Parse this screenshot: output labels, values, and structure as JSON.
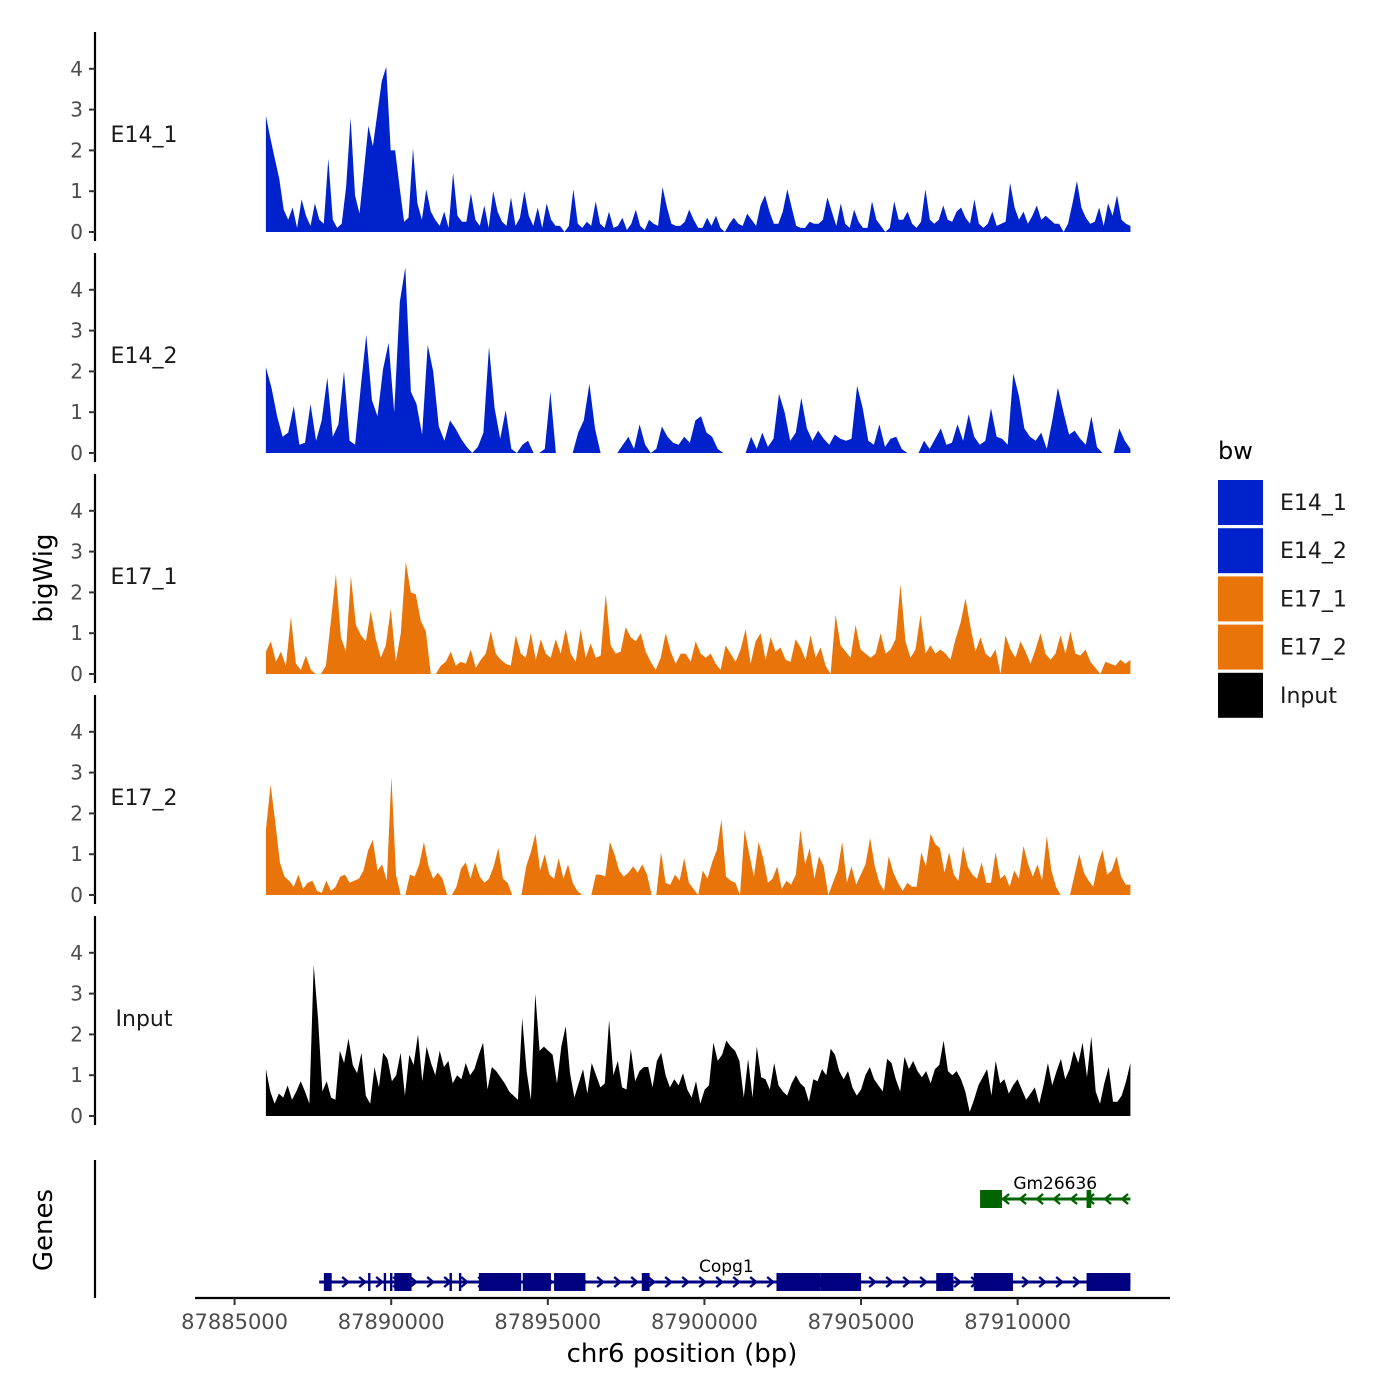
{
  "chart_data": {
    "type": "area",
    "ylabel": "bigWig",
    "genes_label": "Genes",
    "xlabel": "chr6 position (bp)",
    "xlim": [
      87883800,
      87914800
    ],
    "xticks": [
      87885000,
      87890000,
      87895000,
      87900000,
      87905000,
      87910000
    ],
    "xtick_labels": [
      "87885000",
      "87890000",
      "87895000",
      "87900000",
      "87905000",
      "87910000"
    ],
    "ylim": [
      0,
      4.8
    ],
    "yticks": [
      0,
      1,
      2,
      3,
      4
    ],
    "ytick_labels": [
      "0",
      "1",
      "2",
      "3",
      "4"
    ],
    "legend": {
      "title": "bw",
      "placement": "right",
      "entries": [
        {
          "label": "E14_1",
          "color": "#0022CC"
        },
        {
          "label": "E14_2",
          "color": "#0022CC"
        },
        {
          "label": "E17_1",
          "color": "#E8740A"
        },
        {
          "label": "E17_2",
          "color": "#E8740A"
        },
        {
          "label": "Input",
          "color": "#000000"
        }
      ]
    },
    "x_range": [
      87886000,
      87913600
    ],
    "series": [
      {
        "name": "E14_1",
        "color": "#0022CC",
        "values": [
          2.85,
          2.3,
          1.8,
          1.3,
          0.55,
          0.3,
          0.6,
          0.1,
          0.8,
          0.4,
          0.15,
          0.7,
          0.3,
          0.2,
          1.8,
          0.3,
          0.1,
          0.2,
          1.1,
          2.8,
          0.9,
          0.45,
          1.5,
          2.6,
          2.1,
          2.9,
          3.7,
          4.05,
          2.0,
          2.0,
          1.1,
          0.25,
          0.35,
          2.05,
          0.7,
          0.3,
          1.05,
          0.5,
          0.3,
          0.15,
          0.5,
          0.1,
          1.45,
          0.4,
          0.25,
          0.25,
          0.95,
          0.3,
          0.15,
          0.65,
          0.1,
          1.0,
          0.5,
          0.25,
          0.15,
          0.85,
          0.15,
          0.35,
          1.0,
          0.4,
          0.15,
          0.6,
          0.1,
          0.7,
          0.3,
          0.15,
          0.15,
          0,
          0.15,
          1.05,
          0.2,
          0.1,
          0.25,
          0.15,
          0.75,
          0.2,
          0.1,
          0.5,
          0.1,
          0.15,
          0.35,
          0.05,
          0.2,
          0.55,
          0.15,
          0.05,
          0.3,
          0.2,
          0.15,
          1.1,
          0.6,
          0.2,
          0.15,
          0.15,
          0.25,
          0.55,
          0.3,
          0.1,
          0.1,
          0.35,
          0.15,
          0.4,
          0.1,
          0,
          0.2,
          0.35,
          0.2,
          0.15,
          0.45,
          0.3,
          0.15,
          0.65,
          0.9,
          0.5,
          0.2,
          0.2,
          0.5,
          1.05,
          0.6,
          0.15,
          0.1,
          0.1,
          0.25,
          0.2,
          0.2,
          0.3,
          0.85,
          0.5,
          0.15,
          0.7,
          0.2,
          0.1,
          0.55,
          0.25,
          0.1,
          0.1,
          0.75,
          0.3,
          0.15,
          0,
          0.1,
          0.75,
          0.3,
          0.3,
          0.5,
          0.2,
          0.1,
          0.25,
          1.05,
          0.3,
          0.2,
          0.3,
          0.65,
          0.3,
          0.25,
          0.5,
          0.6,
          0.35,
          0.2,
          0.8,
          0.2,
          0.1,
          0.2,
          0.5,
          0.15,
          0.2,
          0.25,
          1.2,
          0.6,
          0.3,
          0.5,
          0.2,
          0.4,
          0.65,
          0.3,
          0.4,
          0.3,
          0.2,
          0.2,
          0,
          0.2,
          0.7,
          1.25,
          0.6,
          0.35,
          0.2,
          0.25,
          0.6,
          0.15,
          0.7,
          0.4,
          0.9,
          0.3,
          0.2,
          0.15
        ]
      },
      {
        "name": "E14_2",
        "color": "#0022CC",
        "values": [
          2.1,
          1.6,
          0.9,
          0.4,
          0.5,
          1.15,
          0.2,
          0.25,
          1.2,
          0.3,
          0.8,
          1.85,
          0.4,
          0.7,
          2.0,
          0.3,
          0.2,
          1.6,
          2.9,
          1.3,
          0.9,
          2.05,
          2.7,
          1.0,
          3.7,
          4.55,
          1.5,
          1.2,
          0.45,
          2.65,
          2.0,
          0.65,
          0.3,
          0.8,
          0.6,
          0.35,
          0.15,
          0,
          0.15,
          0.5,
          2.6,
          1.1,
          0.35,
          1.05,
          0.1,
          0,
          0.2,
          0.3,
          0,
          0,
          0.1,
          1.5,
          0,
          0,
          0,
          0,
          0.5,
          0.8,
          1.7,
          0.6,
          0,
          0,
          0,
          0,
          0.2,
          0.4,
          0.1,
          0.7,
          0.2,
          0,
          0.1,
          0.65,
          0.4,
          0.25,
          0.2,
          0.4,
          0.25,
          0.8,
          0.9,
          0.5,
          0.4,
          0.1,
          0,
          0,
          0,
          0,
          0,
          0.4,
          0.1,
          0.5,
          0.15,
          0.35,
          1.45,
          1.0,
          0.3,
          0.5,
          1.35,
          0.6,
          0.3,
          0.55,
          0.35,
          0.2,
          0.45,
          0.35,
          0.3,
          0.35,
          1.65,
          1.1,
          0.3,
          0.2,
          0.7,
          0.15,
          0.35,
          0.4,
          0.1,
          0,
          0,
          0,
          0.3,
          0.1,
          0.35,
          0.6,
          0.2,
          0.25,
          0.7,
          0.3,
          0.95,
          0.4,
          0.2,
          0.3,
          1.1,
          0.4,
          0.35,
          0.2,
          1.95,
          1.4,
          0.6,
          0.4,
          0.3,
          0.5,
          0.1,
          0.8,
          1.6,
          1.0,
          0.45,
          0.55,
          0.35,
          0.2,
          0.9,
          0.15,
          0,
          0,
          0,
          0.6,
          0.3,
          0.1
        ]
      },
      {
        "name": "E17_1",
        "color": "#E8740A",
        "values": [
          0.55,
          0.8,
          0.3,
          0.55,
          0.2,
          1.4,
          0.25,
          0.1,
          0.45,
          0.1,
          0,
          0,
          0.2,
          1.3,
          2.45,
          0.9,
          0.55,
          2.4,
          1.2,
          0.95,
          0.8,
          1.55,
          0.85,
          0.4,
          0.7,
          1.6,
          0.3,
          1.0,
          2.75,
          2.0,
          1.95,
          1.3,
          1.05,
          0,
          0,
          0.2,
          0.3,
          0.55,
          0.2,
          0.3,
          0.25,
          0.6,
          0.15,
          0.35,
          0.5,
          1.05,
          0.5,
          0.35,
          0.25,
          0.2,
          0.95,
          0.5,
          0.4,
          1.0,
          0.35,
          0.85,
          0.5,
          0.4,
          0.85,
          0.5,
          1.1,
          0.5,
          0.3,
          1.1,
          0.4,
          0.75,
          0.4,
          0.45,
          1.95,
          0.7,
          0.5,
          0.55,
          1.15,
          0.9,
          0.8,
          1.0,
          0.55,
          0.3,
          0.1,
          0.4,
          1.0,
          0.55,
          0.25,
          0.5,
          0.5,
          0.3,
          0.8,
          0.5,
          0.4,
          0.5,
          0.25,
          0.1,
          0.7,
          0.5,
          0.3,
          0.6,
          1.1,
          0.25,
          0.8,
          1.0,
          0.35,
          0.9,
          0.55,
          0.65,
          0.35,
          0.3,
          0.85,
          0.65,
          0.35,
          0.95,
          0.4,
          0.65,
          0.2,
          0,
          1.45,
          0.7,
          0.55,
          0.4,
          1.2,
          0.6,
          0.5,
          0.4,
          0.5,
          1.0,
          0.5,
          0.6,
          0.85,
          2.2,
          0.8,
          0.4,
          0.6,
          1.45,
          0.5,
          0.7,
          0.5,
          0.6,
          0.5,
          0.35,
          0.85,
          1.25,
          1.85,
          1.15,
          0.55,
          0.9,
          0.5,
          0.4,
          0.6,
          0,
          0.95,
          0.6,
          0.4,
          0.8,
          0.55,
          0.25,
          0.6,
          1.0,
          0.5,
          0.35,
          0.5,
          0.95,
          0.5,
          1.05,
          0.5,
          0.45,
          0.6,
          0.3,
          0.15,
          0,
          0.3,
          0.25,
          0.2,
          0.35,
          0.25,
          0.35
        ]
      },
      {
        "name": "E17_2",
        "color": "#E8740A",
        "values": [
          1.6,
          2.7,
          1.8,
          0.8,
          0.45,
          0.35,
          0.2,
          0.5,
          0.15,
          0.3,
          0.35,
          0.1,
          0.05,
          0.35,
          0.1,
          0.2,
          0.45,
          0.5,
          0.3,
          0.35,
          0.4,
          0.6,
          1.1,
          1.35,
          0.6,
          0.75,
          0.35,
          2.9,
          0.5,
          0,
          0,
          0.5,
          0.45,
          0.75,
          1.3,
          0.7,
          0.4,
          0.55,
          0.4,
          0,
          0,
          0.2,
          0.65,
          0.8,
          0.4,
          0.8,
          0.45,
          0.3,
          0.4,
          0.7,
          1.15,
          0.4,
          0.3,
          0,
          0,
          0,
          0.7,
          1.05,
          1.5,
          0.6,
          1.0,
          0.5,
          0.4,
          0.9,
          0.4,
          0.75,
          0.3,
          0.1,
          0,
          0,
          0,
          0.5,
          0.5,
          0.45,
          1.3,
          1.0,
          0.6,
          0.45,
          0.55,
          0.7,
          0.55,
          0.75,
          0.5,
          0,
          0,
          1.05,
          0.3,
          0.25,
          0.5,
          0.35,
          0.9,
          0.3,
          0.15,
          0,
          0.6,
          0.4,
          0.8,
          1.1,
          1.85,
          0.45,
          0.35,
          0.3,
          0,
          1.6,
          1.0,
          0.45,
          1.3,
          0.9,
          0.3,
          0.4,
          0.7,
          0.15,
          0.35,
          0.25,
          0.5,
          1.6,
          0.75,
          1.15,
          0.4,
          0.95,
          0.7,
          0,
          0.3,
          0.6,
          1.3,
          0.3,
          0.7,
          0.25,
          0.5,
          0.75,
          1.4,
          0.7,
          0.3,
          0.1,
          0.95,
          0.55,
          0.3,
          0.1,
          0.3,
          0.2,
          0.2,
          1.05,
          0.7,
          1.5,
          1.25,
          1.15,
          0.55,
          1.05,
          0.5,
          0.35,
          1.2,
          0.7,
          0.5,
          0.4,
          0.8,
          0.3,
          0.3,
          1.05,
          0.4,
          0.5,
          0.2,
          0.6,
          0.4,
          1.2,
          0.75,
          0.45,
          0.75,
          0.35,
          1.45,
          0.6,
          0.2,
          0,
          0,
          0,
          0.5,
          1.0,
          0.55,
          0.35,
          0.2,
          0.75,
          1.1,
          0.5,
          0.6,
          0.95,
          0.45,
          0.25,
          0.25
        ]
      },
      {
        "name": "Input",
        "color": "#000000",
        "values": [
          1.15,
          0.6,
          0.3,
          0.55,
          0.45,
          0.75,
          0.4,
          0.6,
          0.85,
          0.6,
          0.3,
          3.7,
          2.4,
          0.6,
          0.85,
          0.45,
          0.4,
          1.6,
          1.3,
          1.9,
          1.25,
          1.05,
          1.55,
          0.5,
          0.3,
          1.2,
          0.7,
          1.55,
          1.4,
          0.85,
          1.0,
          1.55,
          0.5,
          1.5,
          1.25,
          2.0,
          0.85,
          1.7,
          1.3,
          1.0,
          1.6,
          1.2,
          1.35,
          0.8,
          1.0,
          0.9,
          1.3,
          1.0,
          1.15,
          1.5,
          1.8,
          0.65,
          1.2,
          1.1,
          0.95,
          0.8,
          0.6,
          0.5,
          0.4,
          2.4,
          1.1,
          0.4,
          3.0,
          1.6,
          1.7,
          1.6,
          1.5,
          0.8,
          1.7,
          2.2,
          1.05,
          0.45,
          0.8,
          1.15,
          0.55,
          1.3,
          1.0,
          0.7,
          0.8,
          2.35,
          1.0,
          1.35,
          0.7,
          0.65,
          1.65,
          0.85,
          1.1,
          1.2,
          1.2,
          0.7,
          1.35,
          1.55,
          1.0,
          0.7,
          0.9,
          0.75,
          1.05,
          0.65,
          0.45,
          0.85,
          0.3,
          0.65,
          0.75,
          1.8,
          1.35,
          1.5,
          1.85,
          1.7,
          1.6,
          1.35,
          0.45,
          1.4,
          0.45,
          1.7,
          0.95,
          0.9,
          0.65,
          1.3,
          0.75,
          0.6,
          0.5,
          0.8,
          1.0,
          0.8,
          0.7,
          0.35,
          0.9,
          0.85,
          1.15,
          1.0,
          1.65,
          1.5,
          1.1,
          0.9,
          1.1,
          0.7,
          0.5,
          0.65,
          1.0,
          1.2,
          0.9,
          0.75,
          0.6,
          1.4,
          1.3,
          0.9,
          0.6,
          1.45,
          1.15,
          1.35,
          1.1,
          0.95,
          1.1,
          0.8,
          1.15,
          1.25,
          1.85,
          1.1,
          1.0,
          1.1,
          0.9,
          0.6,
          0.1,
          0.4,
          0.75,
          0.95,
          1.15,
          0.5,
          1.35,
          0.8,
          0.9,
          0.55,
          0.75,
          0.9,
          0.65,
          0.4,
          0.55,
          0.7,
          0.3,
          0.75,
          1.3,
          0.75,
          1.1,
          1.4,
          0.9,
          1.15,
          1.6,
          1.3,
          1.8,
          0.95,
          1.95,
          0.6,
          0.3,
          0.8,
          1.2,
          0.35,
          0.35,
          0.5,
          0.85,
          1.3
        ]
      }
    ],
    "genes": [
      {
        "name": "Copg1",
        "strand": "+",
        "color": "#000080",
        "start": 87887700,
        "end": 87913600,
        "label_pos": 87900700,
        "exons": [
          [
            87887850,
            87888100
          ],
          [
            87890100,
            87890650
          ],
          [
            87892800,
            87894150
          ],
          [
            87894200,
            87895100
          ],
          [
            87895200,
            87896200
          ],
          [
            87898000,
            87898250
          ],
          [
            87902300,
            87903700
          ],
          [
            87903700,
            87905000
          ],
          [
            87907400,
            87907950
          ],
          [
            87908600,
            87909850
          ],
          [
            87912200,
            87913600
          ]
        ],
        "marks": [
          87889300,
          87889800,
          87890000,
          87891900,
          87892200
        ]
      },
      {
        "name": "Gm26636",
        "strand": "-",
        "color": "#006400",
        "start": 87908800,
        "end": 87913600,
        "label_pos": 87911200,
        "exons": [
          [
            87908800,
            87909500
          ],
          [
            87912200,
            87912350
          ]
        ],
        "marks": []
      }
    ]
  }
}
